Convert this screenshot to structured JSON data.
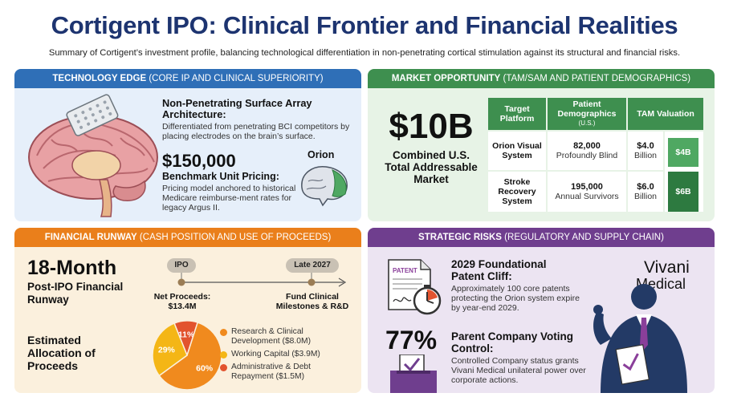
{
  "title": "Cortigent IPO: Clinical Frontier and Financial Realities",
  "subtitle": "Summary of Cortigent’s investment profile, balancing technological differentiation in non-penetrating cortical stimulation against its structural and financial risks.",
  "tech": {
    "header_bold": "TECHNOLOGY EDGE",
    "header_rest": " (CORE IP AND CLINICAL SUPERIORITY)",
    "array_title": "Non-Penetrating Surface Array Architecture:",
    "array_body": "Differentiated from penetrating BCI competitors by placing electrodes on the brain’s surface.",
    "price": "$150,000",
    "price_title": "Benchmark Unit Pricing:",
    "price_body": "Pricing model anchored to historical Medicare reimburse-ment rates for legacy Argus II.",
    "orion_label": "Orion"
  },
  "market": {
    "header_bold": "MARKET OPPORTUNITY",
    "header_rest": " (TAM/SAM AND PATIENT DEMOGRAPHICS)",
    "big_value": "$10B",
    "big_caption": "Combined U.S. Total Addressable Market",
    "table": {
      "col1": "Target Platform",
      "col2": "Patient Demographics",
      "col2_sub": "(U.S.)",
      "col3": "TAM Valuation",
      "rows": [
        {
          "platform": "Orion Visual System",
          "count": "82,000",
          "demo": "Profoundly Blind",
          "tam": "$4.0",
          "tam_unit": "Billion",
          "bar_label": "$4B",
          "value_billion": 4.0
        },
        {
          "platform": "Stroke Recovery System",
          "count": "195,000",
          "demo": "Annual Survivors",
          "tam": "$6.0",
          "tam_unit": "Billion",
          "bar_label": "$6B",
          "value_billion": 6.0
        }
      ]
    },
    "colors": {
      "bar_light": "#4fa862",
      "bar_dark": "#2d7a40"
    }
  },
  "fin": {
    "header_bold": "FINANCIAL RUNWAY",
    "header_rest": " (CASH POSITION AND USE OF PROCEEDS)",
    "runway_big": "18-Month",
    "runway_caption": "Post-IPO Financial Runway",
    "timeline": {
      "start_label": "IPO",
      "start_caption": "Net Proceeds:",
      "start_value": "$13.4M",
      "end_label": "Late 2027",
      "end_caption": "Fund Clinical Milestones & R&D"
    },
    "alloc_title": "Estimated Allocation of Proceeds",
    "pie": [
      {
        "label": "Research & Clinical Development ($8.0M)",
        "pct_label": "60%",
        "pct": 60,
        "color": "#f08a1e"
      },
      {
        "label": "Working Capital ($3.9M)",
        "pct_label": "29%",
        "pct": 29,
        "color": "#f4b616"
      },
      {
        "label": "Administrative & Debt Repayment ($1.5M)",
        "pct_label": "11%",
        "pct": 11,
        "color": "#e2532e"
      }
    ]
  },
  "risk": {
    "header_bold": "STRATEGIC RISKS",
    "header_rest": " (REGULATORY AND SUPPLY CHAIN)",
    "patent_word": "PATENT",
    "patent_title": "2029 Foundational Patent Cliff:",
    "patent_body": "Approximately 100 core patents protecting the Orion system expire by year-end 2029.",
    "control_value": "77%",
    "control_title": "Parent Company Voting Control:",
    "control_body": "Controlled Company status grants Vivani Medical unilateral power over corporate actions.",
    "brand_line1": "Vivani",
    "brand_line2": "Medical"
  }
}
